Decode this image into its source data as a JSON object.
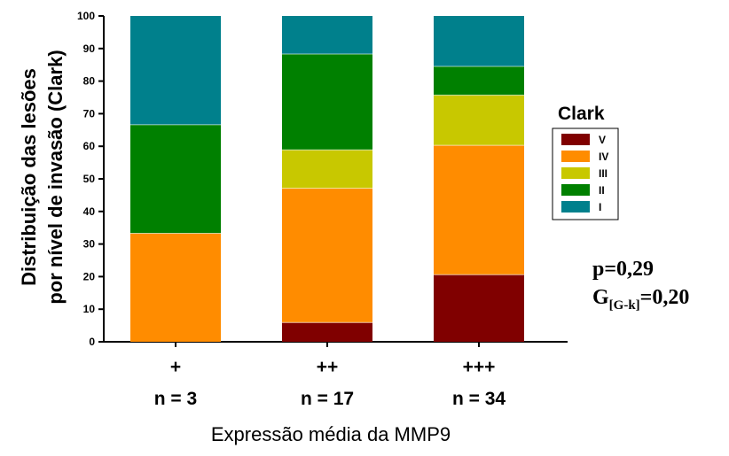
{
  "chart_data": {
    "type": "bar",
    "stacked": true,
    "ylabel_lines": [
      "Distribuição das lesões",
      "por nível de invasão (Clark)"
    ],
    "xlabel": "Expressão média da MMP9",
    "ylim": [
      0,
      100
    ],
    "yticks": [
      0,
      10,
      20,
      30,
      40,
      50,
      60,
      70,
      80,
      90,
      100
    ],
    "grid": false,
    "categories": [
      "+",
      "++",
      "+++"
    ],
    "n_labels": [
      "n = 3",
      "n = 17",
      "n = 34"
    ],
    "series": [
      {
        "name": "V",
        "color": "#800000",
        "values": [
          0,
          5.9,
          20.6
        ]
      },
      {
        "name": "IV",
        "color": "#FF8C00",
        "values": [
          33.3,
          41.2,
          39.7
        ]
      },
      {
        "name": "III",
        "color": "#C8C800",
        "values": [
          0,
          11.8,
          15.4
        ]
      },
      {
        "name": "II",
        "color": "#008000",
        "values": [
          33.3,
          29.4,
          8.8
        ]
      },
      {
        "name": "I",
        "color": "#00808C",
        "values": [
          33.4,
          11.7,
          15.5
        ]
      }
    ],
    "legend": {
      "title": "Clark",
      "placement": "right",
      "order": [
        "V",
        "IV",
        "III",
        "II",
        "I"
      ]
    }
  },
  "annotations": {
    "p_value": "p=0,29",
    "gk_prefix": "G",
    "gk_sub": "[G-k]",
    "gk_value": "=0,20"
  }
}
